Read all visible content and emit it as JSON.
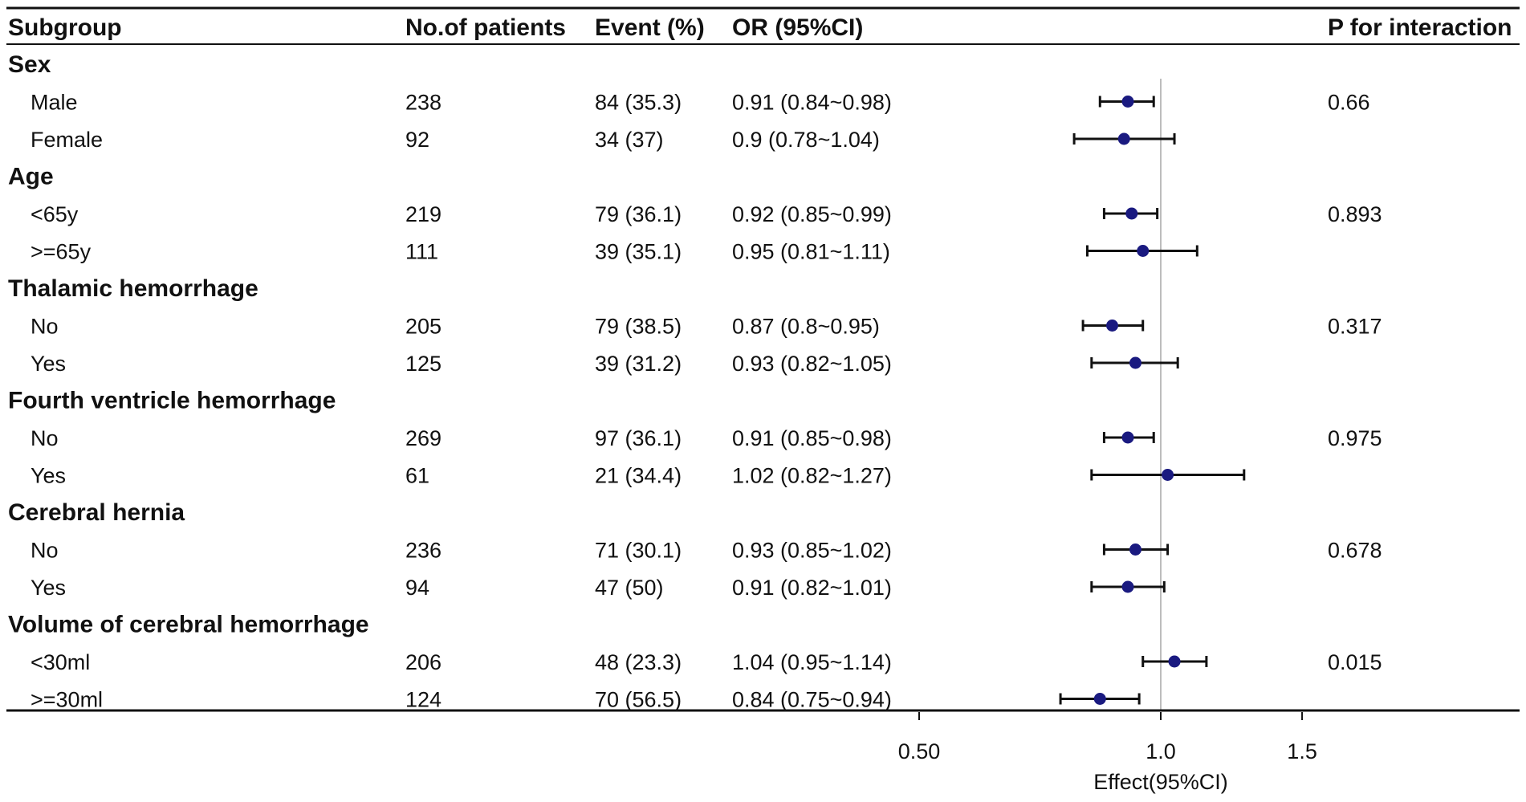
{
  "chart_data": {
    "type": "forest",
    "title": "",
    "columns": {
      "subgroup": "Subgroup",
      "patients": "No.of patients",
      "event": "Event (%)",
      "or": "OR (95%CI)",
      "p": "P for interaction"
    },
    "groups": [
      {
        "name": "Sex",
        "rows": [
          {
            "label": "Male",
            "patients": "238",
            "event": "84 (35.3)",
            "or_text": "0.91 (0.84~0.98)",
            "or": 0.91,
            "lo": 0.84,
            "hi": 0.98,
            "p": "0.66"
          },
          {
            "label": "Female",
            "patients": "92",
            "event": "34 (37)",
            "or_text": "0.9 (0.78~1.04)",
            "or": 0.9,
            "lo": 0.78,
            "hi": 1.04,
            "p": ""
          }
        ]
      },
      {
        "name": "Age",
        "rows": [
          {
            "label": "<65y",
            "patients": "219",
            "event": "79 (36.1)",
            "or_text": "0.92 (0.85~0.99)",
            "or": 0.92,
            "lo": 0.85,
            "hi": 0.99,
            "p": "0.893"
          },
          {
            "label": ">=65y",
            "patients": "111",
            "event": "39 (35.1)",
            "or_text": "0.95 (0.81~1.11)",
            "or": 0.95,
            "lo": 0.81,
            "hi": 1.11,
            "p": ""
          }
        ]
      },
      {
        "name": "Thalamic hemorrhage",
        "rows": [
          {
            "label": "No",
            "patients": "205",
            "event": "79 (38.5)",
            "or_text": "0.87 (0.8~0.95)",
            "or": 0.87,
            "lo": 0.8,
            "hi": 0.95,
            "p": "0.317"
          },
          {
            "label": "Yes",
            "patients": "125",
            "event": "39 (31.2)",
            "or_text": "0.93 (0.82~1.05)",
            "or": 0.93,
            "lo": 0.82,
            "hi": 1.05,
            "p": ""
          }
        ]
      },
      {
        "name": "Fourth ventricle hemorrhage",
        "rows": [
          {
            "label": "No",
            "patients": "269",
            "event": "97 (36.1)",
            "or_text": "0.91 (0.85~0.98)",
            "or": 0.91,
            "lo": 0.85,
            "hi": 0.98,
            "p": "0.975"
          },
          {
            "label": "Yes",
            "patients": "61",
            "event": "21 (34.4)",
            "or_text": "1.02 (0.82~1.27)",
            "or": 1.02,
            "lo": 0.82,
            "hi": 1.27,
            "p": ""
          }
        ]
      },
      {
        "name": "Cerebral hernia",
        "rows": [
          {
            "label": "No",
            "patients": "236",
            "event": "71 (30.1)",
            "or_text": "0.93 (0.85~1.02)",
            "or": 0.93,
            "lo": 0.85,
            "hi": 1.02,
            "p": "0.678"
          },
          {
            "label": "Yes",
            "patients": "94",
            "event": "47 (50)",
            "or_text": "0.91 (0.82~1.01)",
            "or": 0.91,
            "lo": 0.82,
            "hi": 1.01,
            "p": ""
          }
        ]
      },
      {
        "name": "Volume of cerebral hemorrhage",
        "rows": [
          {
            "label": "<30ml",
            "patients": "206",
            "event": "48 (23.3)",
            "or_text": "1.04 (0.95~1.14)",
            "or": 1.04,
            "lo": 0.95,
            "hi": 1.14,
            "p": "0.015"
          },
          {
            "label": ">=30ml",
            "patients": "124",
            "event": "70 (56.5)",
            "or_text": "0.84 (0.75~0.94)",
            "or": 0.84,
            "lo": 0.75,
            "hi": 0.94,
            "p": ""
          }
        ]
      }
    ],
    "x_axis": {
      "label": "Effect(95%CI)",
      "scale": "log",
      "range": [
        0.5,
        1.5
      ],
      "ticks": [
        {
          "value": 0.5,
          "label": "0.50"
        },
        {
          "value": 1.0,
          "label": "1.0"
        },
        {
          "value": 1.5,
          "label": "1.5"
        }
      ],
      "reference": 1.0
    },
    "colors": {
      "point": "#1a1a80",
      "line": "#111111",
      "reference": "#bdbdbd",
      "rule": "#111111"
    }
  }
}
